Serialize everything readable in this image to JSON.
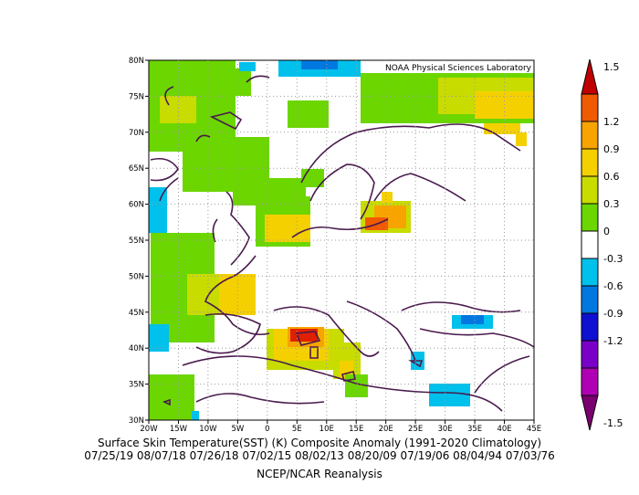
{
  "map": {
    "credit": "NOAA Physical Sciences Laboratory",
    "lat_ticks": [
      "30N",
      "35N",
      "40N",
      "45N",
      "50N",
      "55N",
      "60N",
      "65N",
      "70N",
      "75N",
      "80N"
    ],
    "lon_ticks": [
      "20W",
      "15W",
      "10W",
      "5W",
      "0",
      "5E",
      "10E",
      "15E",
      "20E",
      "25E",
      "30E",
      "35E",
      "40E",
      "45E"
    ],
    "lon_range": [
      -20,
      45
    ],
    "lat_range": [
      30,
      80
    ],
    "land_color": "#4a1a4e",
    "grid": true
  },
  "legend": {
    "labels": [
      "1.5",
      "1.2",
      "0.9",
      "0.6",
      "0.3",
      "0",
      "-0.3",
      "-0.6",
      "-0.9",
      "-1.2",
      "-1.5"
    ],
    "colors": [
      "#c00000",
      "#f05a00",
      "#f7a400",
      "#f5d000",
      "#c8dc00",
      "#6cd600",
      "#ffffff",
      "#00c0ec",
      "#0078e0",
      "#1010d0",
      "#7a00c8",
      "#b000b4",
      "#7a0070"
    ]
  },
  "captions": {
    "title": "Surface Skin Temperature(SST) (K) Composite Anomaly (1991-2020 Climatology)",
    "dates": "07/25/19 08/07/18 07/26/18 07/02/15 08/02/13 08/20/09 07/19/06 08/04/94 07/03/76",
    "source": "NCEP/NCAR Reanalysis"
  }
}
